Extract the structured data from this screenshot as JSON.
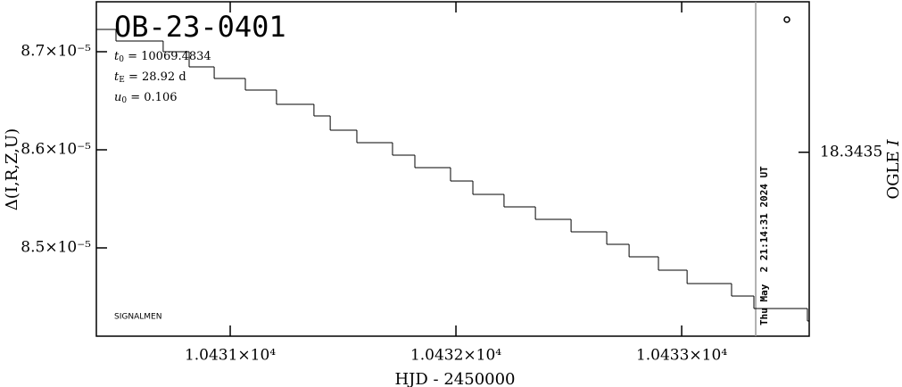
{
  "chart_data": {
    "type": "step",
    "title": "OB-23-0401",
    "annotations": [
      {
        "symbol": "t",
        "sub": "0",
        "text": " = 10069.4834"
      },
      {
        "symbol": "t",
        "sub": "E",
        "text": " = 28.92 d"
      },
      {
        "symbol": "u",
        "sub": "0",
        "text": " = 0.106"
      }
    ],
    "footer_label": "SIGNALMEN",
    "timestamp": "Thu May  2 21:14:31 2024 UT",
    "timestamp_x": 10433.328,
    "x_label": "HJD - 2450000",
    "y_label": "Δ(I,R,Z,U)",
    "y2_label": {
      "text": "OGLE ",
      "band": "I"
    },
    "color": "#000000",
    "x": [
      10430.407,
      10430.494,
      10430.703,
      10430.818,
      10430.929,
      10431.067,
      10431.205,
      10431.371,
      10431.443,
      10431.561,
      10431.719,
      10431.818,
      10431.976,
      10432.075,
      10432.213,
      10432.352,
      10432.51,
      10432.668,
      10432.767,
      10432.897,
      10433.024,
      10433.221,
      10433.32,
      10433.557
    ],
    "values": [
      8.7227e-05,
      8.7109e-05,
      8.7e-05,
      8.6845e-05,
      8.6727e-05,
      8.6609e-05,
      8.6464e-05,
      8.6345e-05,
      8.62e-05,
      8.6073e-05,
      8.5945e-05,
      8.5818e-05,
      8.5682e-05,
      8.5545e-05,
      8.5418e-05,
      8.5291e-05,
      8.5164e-05,
      8.5036e-05,
      8.4909e-05,
      8.4773e-05,
      8.4636e-05,
      8.4509e-05,
      8.4382e-05,
      8.4255e-05
    ],
    "xlim": [
      10430.407,
      10433.565
    ],
    "ylim": [
      8.41e-05,
      8.7509e-05
    ],
    "y2lim": [
      18.3446,
      18.3426
    ],
    "xticks": [
      {
        "value": 10431,
        "label": "1.0431×10⁴"
      },
      {
        "value": 10432,
        "label": "1.0432×10⁴"
      },
      {
        "value": 10433,
        "label": "1.0433×10⁴"
      }
    ],
    "yticks": [
      {
        "value": 8.5e-05,
        "label": "8.5×10⁻⁵"
      },
      {
        "value": 8.6e-05,
        "label": "8.6×10⁻⁵"
      },
      {
        "value": 8.7e-05,
        "label": "8.7×10⁻⁵"
      }
    ],
    "y2ticks": [
      18.3435
    ]
  }
}
